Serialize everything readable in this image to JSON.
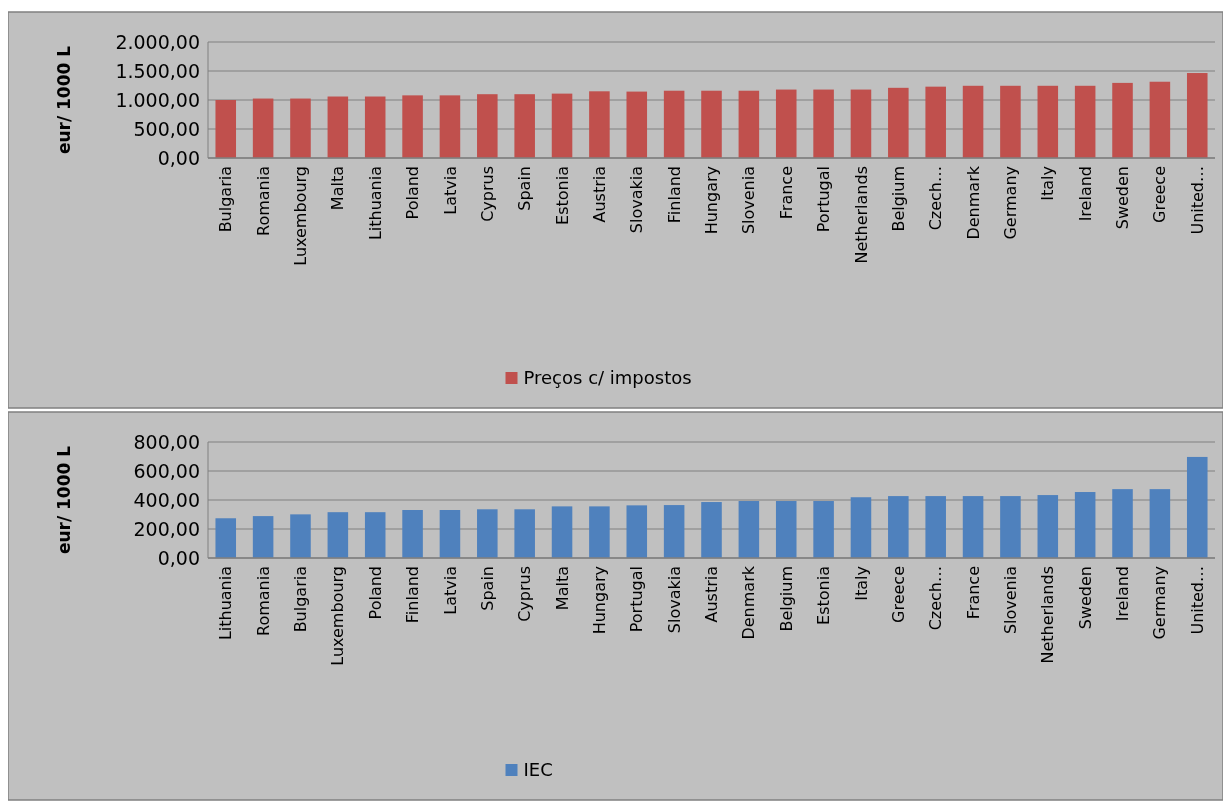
{
  "chart_data": [
    {
      "type": "bar",
      "ylabel": "eur/ 1000 L",
      "categories": [
        "Bulgaria",
        "Romania",
        "Luxembourg",
        "Malta",
        "Lithuania",
        "Poland",
        "Latvia",
        "Cyprus",
        "Spain",
        "Estonia",
        "Austria",
        "Slovakia",
        "Finland",
        "Hungary",
        "Slovenia",
        "France",
        "Portugal",
        "Netherlands",
        "Belgium",
        "Czech…",
        "Denmark",
        "Germany",
        "Italy",
        "Ireland",
        "Sweden",
        "Greece",
        "United…"
      ],
      "series": [
        {
          "name": "Preços c/ impostos",
          "color": "#c0504d",
          "values": [
            1000,
            1025,
            1025,
            1060,
            1060,
            1080,
            1080,
            1100,
            1100,
            1110,
            1150,
            1145,
            1160,
            1160,
            1160,
            1180,
            1180,
            1180,
            1210,
            1230,
            1245,
            1245,
            1245,
            1245,
            1295,
            1315,
            1465
          ]
        }
      ],
      "ylim": [
        0,
        2000
      ],
      "yticks": [
        {
          "value": 0,
          "label": "0,00"
        },
        {
          "value": 500,
          "label": "500,00"
        },
        {
          "value": 1000,
          "label": "1.000,00"
        },
        {
          "value": 1500,
          "label": "1.500,00"
        },
        {
          "value": 2000,
          "label": "2.000,00"
        }
      ],
      "grid": "y",
      "legend": "bottom"
    },
    {
      "type": "bar",
      "ylabel": "eur/ 1000 L",
      "categories": [
        "Lithuania",
        "Romania",
        "Bulgaria",
        "Luxembourg",
        "Poland",
        "Finland",
        "Latvia",
        "Spain",
        "Cyprus",
        "Malta",
        "Hungary",
        "Portugal",
        "Slovakia",
        "Austria",
        "Denmark",
        "Belgium",
        "Estonia",
        "Italy",
        "Greece",
        "Czech…",
        "France",
        "Slovenia",
        "Netherlands",
        "Sweden",
        "Ireland",
        "Germany",
        "United…"
      ],
      "series": [
        {
          "name": "IEC",
          "color": "#4f81bd",
          "values": [
            274,
            289,
            301,
            316,
            316,
            331,
            331,
            336,
            336,
            356,
            356,
            363,
            365,
            386,
            393,
            393,
            393,
            419,
            427,
            427,
            427,
            427,
            434,
            455,
            475,
            475,
            697
          ]
        }
      ],
      "ylim": [
        0,
        800
      ],
      "yticks": [
        {
          "value": 0,
          "label": "0,00"
        },
        {
          "value": 200,
          "label": "200,00"
        },
        {
          "value": 400,
          "label": "400,00"
        },
        {
          "value": 600,
          "label": "600,00"
        },
        {
          "value": 800,
          "label": "800,00"
        }
      ],
      "grid": "y",
      "legend": "bottom"
    }
  ]
}
